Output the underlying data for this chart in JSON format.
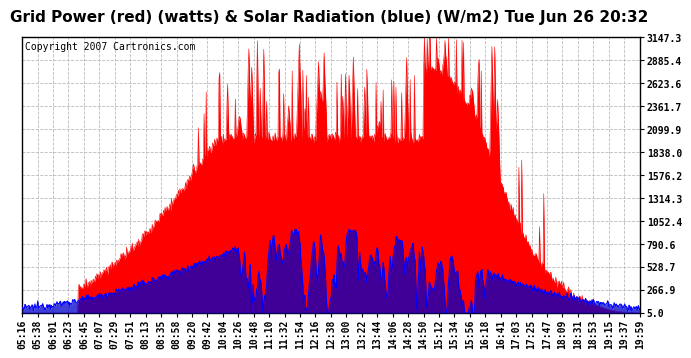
{
  "title": "Grid Power (red) (watts) & Solar Radiation (blue) (W/m2) Tue Jun 26 20:32",
  "copyright": "Copyright 2007 Cartronics.com",
  "bg_color": "#ffffff",
  "plot_bg_color": "#ffffff",
  "grid_color": "#bbbbbb",
  "yticks": [
    5.0,
    266.9,
    528.7,
    790.6,
    1052.4,
    1314.3,
    1576.2,
    1838.0,
    2099.9,
    2361.7,
    2623.6,
    2885.4,
    3147.3
  ],
  "ymin": 0,
  "ymax": 3147.3,
  "x_labels": [
    "05:16",
    "05:38",
    "06:01",
    "06:23",
    "06:45",
    "07:07",
    "07:29",
    "07:51",
    "08:13",
    "08:35",
    "08:58",
    "09:20",
    "09:42",
    "10:04",
    "10:26",
    "10:48",
    "11:10",
    "11:32",
    "11:54",
    "12:16",
    "12:38",
    "13:00",
    "13:22",
    "13:44",
    "14:06",
    "14:28",
    "14:50",
    "15:12",
    "15:34",
    "15:56",
    "16:18",
    "16:41",
    "17:03",
    "17:25",
    "17:47",
    "18:09",
    "18:31",
    "18:53",
    "19:15",
    "19:37",
    "19:59"
  ],
  "red_color": "#ff0000",
  "blue_color": "#0000ff",
  "title_fontsize": 11,
  "tick_fontsize": 7,
  "copyright_fontsize": 7
}
